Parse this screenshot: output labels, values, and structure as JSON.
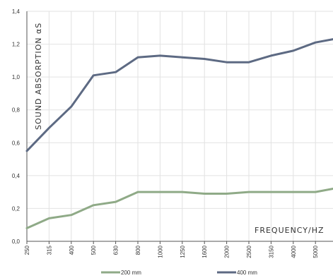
{
  "chart_data": {
    "type": "line",
    "categories": [
      "250",
      "315",
      "400",
      "500",
      "630",
      "800",
      "1000",
      "1250",
      "1600",
      "2000",
      "2500",
      "3150",
      "4000",
      "5000"
    ],
    "series": [
      {
        "name": "200 mm",
        "color": "#8faa87",
        "values": [
          0.08,
          0.14,
          0.16,
          0.22,
          0.24,
          0.3,
          0.3,
          0.3,
          0.29,
          0.29,
          0.3,
          0.3,
          0.3,
          0.3
        ]
      },
      {
        "name": "400 mm",
        "color": "#5d6a83",
        "values": [
          0.55,
          0.69,
          0.82,
          1.01,
          1.03,
          1.12,
          1.13,
          1.12,
          1.11,
          1.09,
          1.09,
          1.13,
          1.16,
          1.21
        ]
      }
    ],
    "extra_points": {
      "200 mm": 0.32,
      "400 mm": 1.23
    },
    "ylim": [
      0,
      1.4
    ],
    "yticks": [
      "0,0",
      "0,2",
      "0,4",
      "0,6",
      "0,8",
      "1,0",
      "1,2",
      "1,4"
    ],
    "ylabel": "SOUND ABSORPTION αS",
    "xlabel": "FREQUENCY/HZ",
    "grid": true,
    "legend_position": "bottom-center"
  }
}
